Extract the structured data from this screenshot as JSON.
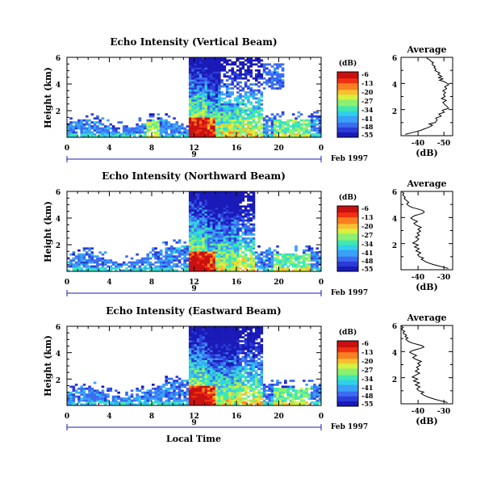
{
  "colors": {
    "scale": [
      "#1a1ab8",
      "#2a3cd8",
      "#3a6cf0",
      "#3aa0f8",
      "#30d0e8",
      "#40e8b0",
      "#8cf070",
      "#d8f040",
      "#f8c030",
      "#f88020",
      "#f03010",
      "#c81010"
    ]
  },
  "chart_data": [
    {
      "type": "heatmap",
      "title": "Echo Intensity (Vertical Beam)",
      "ylabel": "Height (km)",
      "xticks": [
        "0",
        "4",
        "8",
        "12",
        "16",
        "20",
        "0"
      ],
      "yticks": [
        "6",
        "4",
        "2"
      ],
      "date_label": "9",
      "date_suffix": "Feb 1997",
      "xlim": [
        0,
        24
      ],
      "ylim": [
        0,
        6
      ],
      "colorbar": {
        "title": "(dB)",
        "labels": [
          "-6",
          "-13",
          "-20",
          "-27",
          "-34",
          "-41",
          "-48",
          "-55"
        ]
      },
      "profile": {
        "title": "Average",
        "xlabel": "(dB)",
        "xticks": [
          "-40",
          "-50"
        ],
        "xlim": [
          -35,
          -53
        ],
        "yticks": [
          "6",
          "4",
          "2"
        ],
        "ylim": [
          0,
          6
        ],
        "x": [
          -36.5,
          -38.2,
          -40.0,
          -41.8,
          -42.9,
          -44.1,
          -45.2,
          -46.0,
          -44.8,
          -46.9,
          -47.6,
          -47.1,
          -49.0,
          -48.2,
          -50.1,
          -49.4,
          -51.6,
          -51.0,
          -50.2,
          -49.6,
          -50.8,
          -49.1,
          -50.4,
          -49.8,
          -50.5,
          -49.6,
          -50.9,
          -50.2,
          -51.6,
          -50.8,
          -49.9,
          -48.4,
          -49.6,
          -48.1,
          -49.2,
          -48.6,
          -47.9,
          -48.5,
          -47.6,
          -46.8,
          -47.2,
          -46.5,
          -46.9,
          -46.1,
          -45.8,
          -46.3,
          -45.4,
          -45.0,
          -44.6,
          -44.1,
          -43.8
        ],
        "y": [
          0.1,
          0.2,
          0.3,
          0.4,
          0.5,
          0.6,
          0.7,
          0.8,
          0.9,
          1.0,
          1.2,
          1.35,
          1.5,
          1.65,
          1.8,
          1.95,
          2.1,
          2.25,
          2.4,
          2.55,
          2.7,
          2.85,
          3.0,
          3.15,
          3.3,
          3.45,
          3.6,
          3.75,
          3.9,
          4.05,
          4.15,
          4.25,
          4.35,
          4.45,
          4.55,
          4.6,
          4.7,
          4.8,
          4.9,
          5.0,
          5.1,
          5.2,
          5.3,
          5.4,
          5.5,
          5.6,
          5.7,
          5.8,
          5.85,
          5.92,
          6.0
        ]
      }
    },
    {
      "type": "heatmap",
      "title": "Echo Intensity (Northward Beam)",
      "ylabel": "Height (km)",
      "xticks": [
        "0",
        "4",
        "8",
        "12",
        "16",
        "20",
        "0"
      ],
      "yticks": [
        "6",
        "4",
        "2"
      ],
      "date_label": "9",
      "date_suffix": "Feb 1997",
      "xlim": [
        0,
        24
      ],
      "ylim": [
        0,
        6
      ],
      "colorbar": {
        "title": "(dB)",
        "labels": [
          "-6",
          "-13",
          "-20",
          "-27",
          "-34",
          "-41",
          "-48",
          "-55"
        ]
      },
      "profile": {
        "title": "Average",
        "xlabel": "(dB)",
        "xticks": [
          "-40",
          "-30"
        ],
        "xlim": [
          -46,
          -28
        ],
        "yticks": [
          "6",
          "4",
          "2"
        ],
        "ylim": [
          0,
          6
        ],
        "x": [
          -29.5,
          -31.2,
          -33.0,
          -34.8,
          -36.1,
          -37.3,
          -38.0,
          -38.9,
          -38.2,
          -39.6,
          -40.2,
          -39.1,
          -40.8,
          -39.7,
          -41.3,
          -40.0,
          -41.9,
          -40.6,
          -39.8,
          -40.9,
          -39.6,
          -40.4,
          -39.2,
          -40.1,
          -39.0,
          -40.6,
          -41.5,
          -40.3,
          -41.8,
          -42.6,
          -42.0,
          -41.2,
          -39.6,
          -38.2,
          -37.9,
          -38.6,
          -40.1,
          -41.8,
          -43.0,
          -43.6,
          -44.0,
          -43.3,
          -43.8,
          -44.3,
          -44.9,
          -44.5,
          -45.1,
          -45.4,
          -45.0,
          -45.6
        ],
        "y": [
          0.1,
          0.2,
          0.3,
          0.4,
          0.5,
          0.6,
          0.7,
          0.8,
          0.9,
          1.0,
          1.15,
          1.3,
          1.45,
          1.6,
          1.75,
          1.9,
          2.05,
          2.2,
          2.35,
          2.5,
          2.65,
          2.8,
          2.95,
          3.1,
          3.25,
          3.4,
          3.55,
          3.7,
          3.85,
          3.95,
          4.05,
          4.15,
          4.25,
          4.35,
          4.45,
          4.55,
          4.65,
          4.75,
          4.85,
          4.95,
          5.05,
          5.15,
          5.25,
          5.35,
          5.45,
          5.55,
          5.65,
          5.75,
          5.85,
          5.95
        ]
      }
    },
    {
      "type": "heatmap",
      "title": "Echo Intensity (Eastward Beam)",
      "ylabel": "Height (km)",
      "xlabel": "Local Time",
      "xticks": [
        "0",
        "4",
        "8",
        "12",
        "16",
        "20",
        "0"
      ],
      "yticks": [
        "6",
        "4",
        "2"
      ],
      "date_label": "9",
      "date_suffix": "Feb 1997",
      "xlim": [
        0,
        24
      ],
      "ylim": [
        0,
        6
      ],
      "colorbar": {
        "title": "(dB)",
        "labels": [
          "-6",
          "-13",
          "-20",
          "-27",
          "-34",
          "-41",
          "-48",
          "-55"
        ]
      },
      "profile": {
        "title": "Average",
        "xlabel": "(dB)",
        "xticks": [
          "-40",
          "-30"
        ],
        "xlim": [
          -46,
          -28
        ],
        "yticks": [
          "6",
          "4",
          "2"
        ],
        "ylim": [
          0,
          6
        ],
        "x": [
          -29.8,
          -31.5,
          -33.4,
          -35.0,
          -36.4,
          -37.5,
          -38.3,
          -39.0,
          -38.1,
          -39.8,
          -40.5,
          -39.4,
          -41.0,
          -39.6,
          -41.6,
          -40.2,
          -42.1,
          -40.8,
          -39.5,
          -41.0,
          -39.8,
          -40.6,
          -39.3,
          -40.2,
          -38.9,
          -40.8,
          -41.9,
          -40.6,
          -42.2,
          -43.0,
          -42.3,
          -40.8,
          -39.2,
          -38.0,
          -38.6,
          -40.4,
          -42.0,
          -43.2,
          -43.9,
          -44.3,
          -43.6,
          -44.6,
          -44.1,
          -44.9,
          -45.3,
          -44.7,
          -45.5,
          -45.8,
          -45.2,
          -46.0
        ],
        "y": [
          0.1,
          0.2,
          0.3,
          0.4,
          0.5,
          0.6,
          0.7,
          0.8,
          0.9,
          1.0,
          1.15,
          1.3,
          1.45,
          1.6,
          1.75,
          1.9,
          2.05,
          2.2,
          2.35,
          2.5,
          2.65,
          2.8,
          2.95,
          3.1,
          3.25,
          3.4,
          3.55,
          3.7,
          3.85,
          3.95,
          4.05,
          4.15,
          4.25,
          4.35,
          4.45,
          4.55,
          4.65,
          4.75,
          4.85,
          4.95,
          5.05,
          5.15,
          5.25,
          5.35,
          5.45,
          5.55,
          5.65,
          5.75,
          5.85,
          5.95
        ]
      }
    }
  ]
}
